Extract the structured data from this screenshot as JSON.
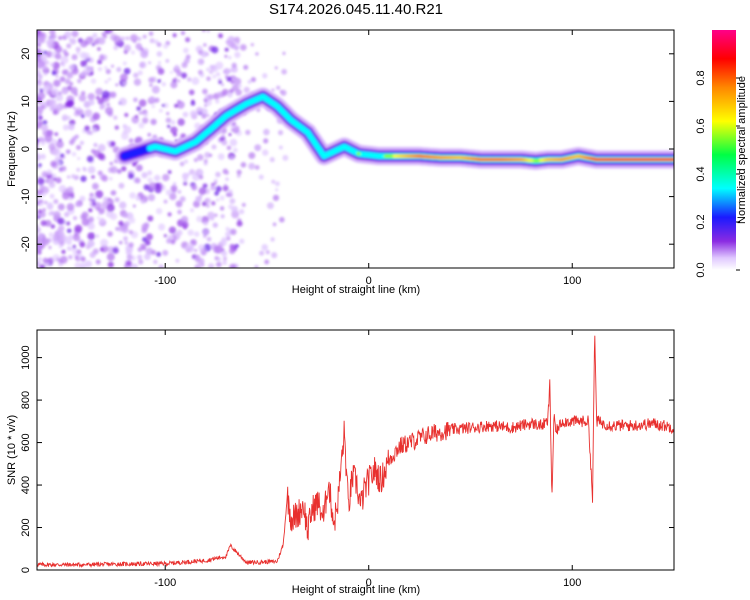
{
  "title": "S174.2026.045.11.40.R21",
  "chart_data": [
    {
      "type": "heatmap",
      "xlabel": "Height of straight line (km)",
      "ylabel": "Frequency (Hz)",
      "xlim": [
        -163,
        150
      ],
      "ylim": [
        -25,
        25
      ],
      "xticks": [
        -100,
        0,
        100
      ],
      "xtick_labels": [
        "-100",
        "0",
        "100"
      ],
      "yticks": [
        -20,
        -10,
        0,
        10,
        20
      ],
      "ytick_labels": [
        "-20",
        "-10",
        "0",
        "10",
        "20"
      ],
      "colorbar": {
        "label": "Normalized spectral amplitude",
        "range": [
          0,
          1
        ],
        "ticks": [
          0.0,
          0.2,
          0.4,
          0.6,
          0.8
        ],
        "tick_labels": [
          "0.0",
          "0.2",
          "0.4",
          "0.6",
          "0.8"
        ],
        "colors": [
          "#ffffff",
          "#e0c8ff",
          "#8a2be2",
          "#1a1aff",
          "#00ffff",
          "#00ff44",
          "#ffff00",
          "#ff8800",
          "#ff0000",
          "#ff0088"
        ]
      },
      "ridge": [
        {
          "x": -120,
          "y": -1.5,
          "a": 0.3
        },
        {
          "x": -105,
          "y": 0.5,
          "a": 0.35
        },
        {
          "x": -95,
          "y": -0.5,
          "a": 0.4
        },
        {
          "x": -85,
          "y": 1.5,
          "a": 0.4
        },
        {
          "x": -78,
          "y": 4,
          "a": 0.45
        },
        {
          "x": -70,
          "y": 7,
          "a": 0.45
        },
        {
          "x": -60,
          "y": 9.5,
          "a": 0.45
        },
        {
          "x": -52,
          "y": 11,
          "a": 0.45
        },
        {
          "x": -45,
          "y": 9,
          "a": 0.4
        },
        {
          "x": -38,
          "y": 6,
          "a": 0.4
        },
        {
          "x": -30,
          "y": 3.5,
          "a": 0.45
        },
        {
          "x": -22,
          "y": -1.5,
          "a": 0.35
        },
        {
          "x": -12,
          "y": 0.5,
          "a": 0.45
        },
        {
          "x": -5,
          "y": -1,
          "a": 0.55
        },
        {
          "x": 5,
          "y": -1.5,
          "a": 0.5
        },
        {
          "x": 15,
          "y": -1.5,
          "a": 0.65
        },
        {
          "x": 25,
          "y": -1.5,
          "a": 0.8
        },
        {
          "x": 35,
          "y": -1.8,
          "a": 0.75
        },
        {
          "x": 45,
          "y": -1.8,
          "a": 0.7
        },
        {
          "x": 55,
          "y": -2.2,
          "a": 0.8
        },
        {
          "x": 65,
          "y": -2.2,
          "a": 0.8
        },
        {
          "x": 75,
          "y": -2.2,
          "a": 0.75
        },
        {
          "x": 82,
          "y": -2.5,
          "a": 0.55
        },
        {
          "x": 88,
          "y": -2.2,
          "a": 0.7
        },
        {
          "x": 95,
          "y": -2.2,
          "a": 0.75
        },
        {
          "x": 103,
          "y": -1.5,
          "a": 0.7
        },
        {
          "x": 112,
          "y": -2.2,
          "a": 0.85
        },
        {
          "x": 125,
          "y": -2.2,
          "a": 0.9
        },
        {
          "x": 140,
          "y": -2.2,
          "a": 0.9
        },
        {
          "x": 150,
          "y": -2.2,
          "a": 0.9
        }
      ]
    },
    {
      "type": "line",
      "xlabel": "Height of straight line (km)",
      "ylabel": "SNR (10 * v/v)",
      "xlim": [
        -163,
        150
      ],
      "ylim": [
        0,
        1130
      ],
      "xticks": [
        -100,
        0,
        100
      ],
      "xtick_labels": [
        "-100",
        "0",
        "100"
      ],
      "yticks": [
        0,
        200,
        400,
        600,
        800,
        1000
      ],
      "ytick_labels": [
        "0",
        "200",
        "400",
        "600",
        "800",
        "1000"
      ],
      "color": "#e8302e",
      "series": [
        {
          "name": "SNR",
          "x": [
            -163,
            -140,
            -120,
            -100,
            -80,
            -70,
            -68,
            -60,
            -45,
            -42,
            -40,
            -38,
            -35,
            -32,
            -30,
            -28,
            -25,
            -22,
            -20,
            -17,
            -15,
            -12,
            -10,
            -8,
            -6,
            -4,
            -2,
            0,
            3,
            6,
            10,
            15,
            20,
            25,
            30,
            40,
            50,
            60,
            70,
            75,
            80,
            85,
            88,
            89,
            90,
            91,
            92,
            95,
            100,
            105,
            108,
            110,
            111,
            112,
            113,
            115,
            120,
            130,
            140,
            150
          ],
          "y": [
            25,
            25,
            28,
            30,
            45,
            65,
            115,
            35,
            40,
            120,
            350,
            240,
            260,
            310,
            180,
            280,
            320,
            240,
            420,
            220,
            340,
            650,
            290,
            440,
            410,
            300,
            380,
            420,
            470,
            420,
            520,
            580,
            600,
            620,
            640,
            660,
            670,
            680,
            670,
            680,
            690,
            680,
            700,
            880,
            330,
            720,
            650,
            700,
            700,
            700,
            700,
            330,
            1130,
            700,
            700,
            690,
            680,
            680,
            690,
            670
          ]
        }
      ]
    }
  ]
}
